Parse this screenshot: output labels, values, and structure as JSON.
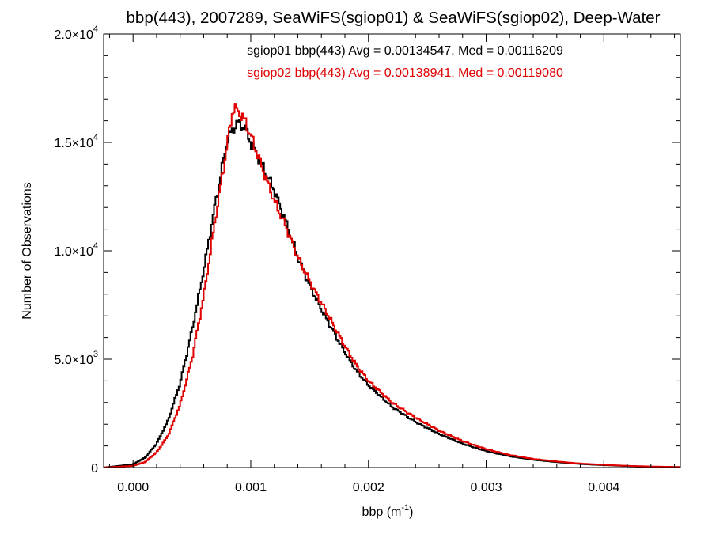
{
  "chart_data": {
    "type": "line",
    "title": "bbp(443), 2007289, SeaWiFS(sgiop01) & SeaWiFS(sgiop02), Deep-Water",
    "xlabel": "bbp (m",
    "xlabel_sup": "-1",
    "xlabel_close": ")",
    "ylabel": "Number of Observations",
    "xlim": [
      -0.00025,
      0.00465
    ],
    "ylim": [
      0,
      20000
    ],
    "x_ticks": [
      {
        "value": 0.0,
        "label": "0.000"
      },
      {
        "value": 0.001,
        "label": "0.001"
      },
      {
        "value": 0.002,
        "label": "0.002"
      },
      {
        "value": 0.003,
        "label": "0.003"
      },
      {
        "value": 0.004,
        "label": "0.004"
      }
    ],
    "y_ticks": [
      {
        "value": 0,
        "label": "0",
        "sup": ""
      },
      {
        "value": 5000,
        "label": "5.0×10",
        "sup": "3"
      },
      {
        "value": 10000,
        "label": "1.0×10",
        "sup": "4"
      },
      {
        "value": 15000,
        "label": "1.5×10",
        "sup": "4"
      },
      {
        "value": 20000,
        "label": "2.0×10",
        "sup": "4"
      }
    ],
    "x_minor_step": 0.0002,
    "y_minor_step": 1000,
    "legend_position": "top-center",
    "legend": [
      {
        "text": "sgiop01 bbp(443) Avg = 0.00134547, Med = 0.00116209",
        "color": "#000000"
      },
      {
        "text": "sgiop02 bbp(443) Avg = 0.00138941, Med = 0.00119080",
        "color": "#e00000"
      }
    ],
    "series": [
      {
        "color": "#000000",
        "points": [
          [
            -0.00025,
            0
          ],
          [
            0.0,
            150
          ],
          [
            0.0001,
            450
          ],
          [
            0.0002,
            1100
          ],
          [
            0.0003,
            2200
          ],
          [
            0.0004,
            3900
          ],
          [
            0.0005,
            6300
          ],
          [
            0.0006,
            9100
          ],
          [
            0.0007,
            12200
          ],
          [
            0.0008,
            15100
          ],
          [
            0.00088,
            15900
          ],
          [
            0.00095,
            15700
          ],
          [
            0.001,
            15000
          ],
          [
            0.0011,
            13900
          ],
          [
            0.0012,
            12800
          ],
          [
            0.0013,
            11300
          ],
          [
            0.0014,
            9700
          ],
          [
            0.0015,
            8400
          ],
          [
            0.0016,
            7300
          ],
          [
            0.0017,
            6300
          ],
          [
            0.0018,
            5300
          ],
          [
            0.0019,
            4450
          ],
          [
            0.002,
            3800
          ],
          [
            0.0022,
            2800
          ],
          [
            0.0024,
            2100
          ],
          [
            0.0026,
            1550
          ],
          [
            0.0028,
            1100
          ],
          [
            0.003,
            760
          ],
          [
            0.0032,
            520
          ],
          [
            0.0034,
            360
          ],
          [
            0.0036,
            250
          ],
          [
            0.0038,
            165
          ],
          [
            0.004,
            110
          ],
          [
            0.0042,
            70
          ],
          [
            0.0044,
            40
          ],
          [
            0.00465,
            20
          ]
        ]
      },
      {
        "color": "#e00000",
        "points": [
          [
            -0.00025,
            0
          ],
          [
            0.0,
            80
          ],
          [
            0.0001,
            250
          ],
          [
            0.0002,
            700
          ],
          [
            0.0003,
            1500
          ],
          [
            0.0004,
            2900
          ],
          [
            0.0005,
            5000
          ],
          [
            0.0006,
            7900
          ],
          [
            0.0007,
            11500
          ],
          [
            0.0008,
            14900
          ],
          [
            0.00085,
            16600
          ],
          [
            0.0009,
            16400
          ],
          [
            0.00095,
            16000
          ],
          [
            0.001,
            15300
          ],
          [
            0.0011,
            13800
          ],
          [
            0.0012,
            12300
          ],
          [
            0.0013,
            11100
          ],
          [
            0.0014,
            9700
          ],
          [
            0.0015,
            8600
          ],
          [
            0.0016,
            7600
          ],
          [
            0.0017,
            6600
          ],
          [
            0.0018,
            5600
          ],
          [
            0.0019,
            4700
          ],
          [
            0.002,
            4000
          ],
          [
            0.0022,
            3000
          ],
          [
            0.0024,
            2300
          ],
          [
            0.0026,
            1700
          ],
          [
            0.0028,
            1220
          ],
          [
            0.003,
            850
          ],
          [
            0.0032,
            580
          ],
          [
            0.0034,
            400
          ],
          [
            0.0036,
            280
          ],
          [
            0.0038,
            185
          ],
          [
            0.004,
            125
          ],
          [
            0.0042,
            80
          ],
          [
            0.0044,
            48
          ],
          [
            0.00465,
            25
          ]
        ]
      }
    ]
  }
}
